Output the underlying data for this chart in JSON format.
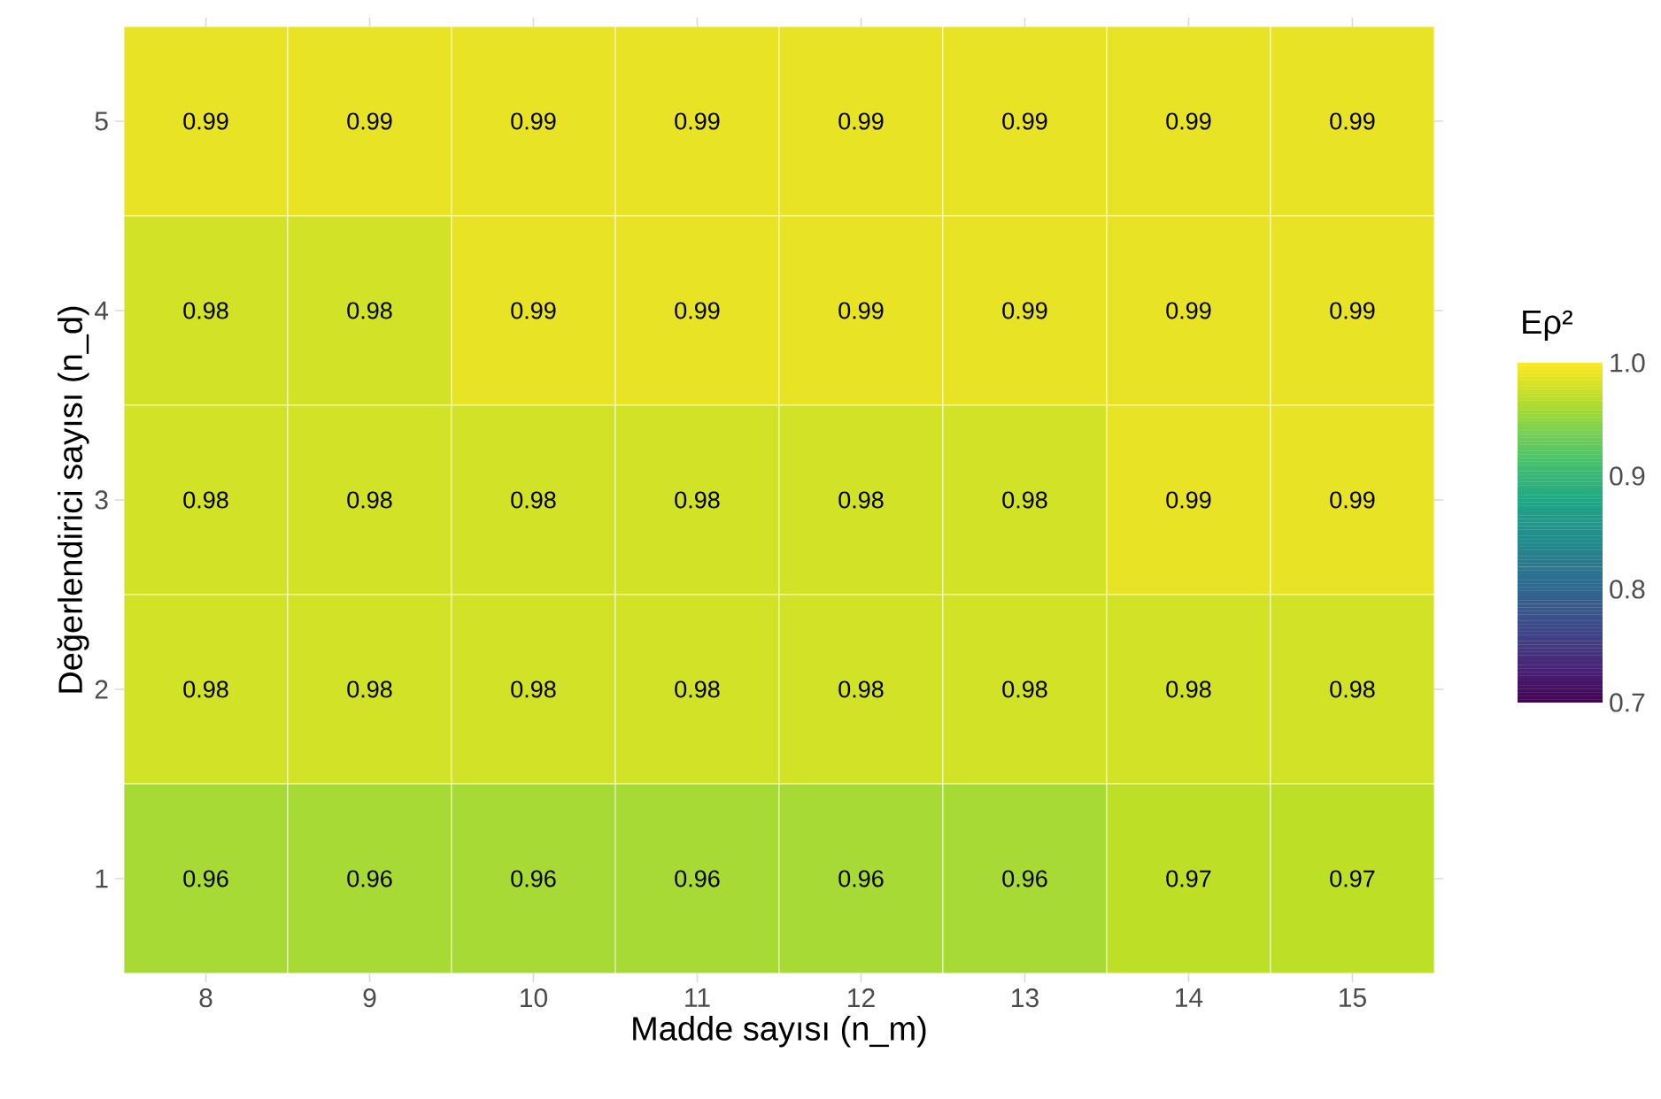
{
  "chart_data": {
    "type": "heatmap",
    "xlabel": "Madde sayısı (n_m)",
    "ylabel": "Değerlendirici sayısı (n_d)",
    "clabel": "Eρ²",
    "categories": [
      "8",
      "9",
      "10",
      "11",
      "12",
      "13",
      "14",
      "15"
    ],
    "y_categories": [
      "5",
      "4",
      "3",
      "2",
      "1"
    ],
    "cells": [
      [
        0.99,
        0.99,
        0.99,
        0.99,
        0.99,
        0.99,
        0.99,
        0.99
      ],
      [
        0.98,
        0.98,
        0.99,
        0.99,
        0.99,
        0.99,
        0.99,
        0.99
      ],
      [
        0.98,
        0.98,
        0.98,
        0.98,
        0.98,
        0.98,
        0.99,
        0.99
      ],
      [
        0.98,
        0.98,
        0.98,
        0.98,
        0.98,
        0.98,
        0.98,
        0.98
      ],
      [
        0.96,
        0.96,
        0.96,
        0.96,
        0.96,
        0.96,
        0.97,
        0.97
      ]
    ],
    "cell_labels": [
      [
        "0.99",
        "0.99",
        "0.99",
        "0.99",
        "0.99",
        "0.99",
        "0.99",
        "0.99"
      ],
      [
        "0.98",
        "0.98",
        "0.99",
        "0.99",
        "0.99",
        "0.99",
        "0.99",
        "0.99"
      ],
      [
        "0.98",
        "0.98",
        "0.98",
        "0.98",
        "0.98",
        "0.98",
        "0.99",
        "0.99"
      ],
      [
        "0.98",
        "0.98",
        "0.98",
        "0.98",
        "0.98",
        "0.98",
        "0.98",
        "0.98"
      ],
      [
        "0.96",
        "0.96",
        "0.96",
        "0.96",
        "0.96",
        "0.96",
        "0.97",
        "0.97"
      ]
    ],
    "clim": [
      0.7,
      1.0
    ],
    "cticks": [
      0.7,
      0.8,
      0.9,
      {
        "value": 1.0,
        "label": "1.0"
      }
    ]
  }
}
